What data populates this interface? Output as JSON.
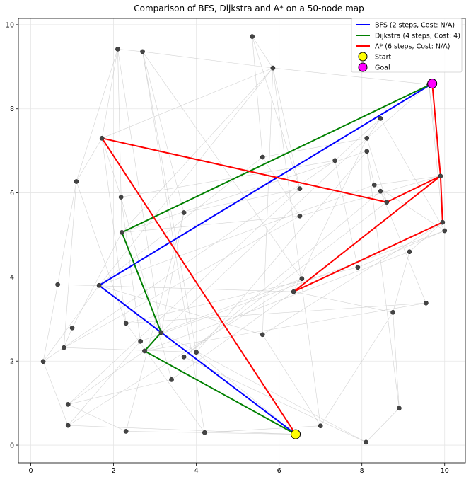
{
  "chart_data": {
    "type": "scatter",
    "title": "Comparison of BFS, Dijkstra and A* on a 50-node map",
    "xlabel": "",
    "ylabel": "",
    "xlim": [
      -0.3,
      10.5
    ],
    "ylim": [
      -0.42,
      10.15
    ],
    "xticks": [
      0,
      2,
      4,
      6,
      8,
      10
    ],
    "yticks": [
      0,
      2,
      4,
      6,
      8,
      10
    ],
    "grid": true,
    "legend_position": "top-right",
    "nodes": [
      [
        5.35,
        9.72
      ],
      [
        2.1,
        9.42
      ],
      [
        2.7,
        9.36
      ],
      [
        5.85,
        8.97
      ],
      [
        9.62,
        8.58
      ],
      [
        8.45,
        7.77
      ],
      [
        1.72,
        7.3
      ],
      [
        8.12,
        7.3
      ],
      [
        8.12,
        6.99
      ],
      [
        5.6,
        6.85
      ],
      [
        7.35,
        6.77
      ],
      [
        9.9,
        6.4
      ],
      [
        1.1,
        6.27
      ],
      [
        8.3,
        6.19
      ],
      [
        6.5,
        6.1
      ],
      [
        8.45,
        6.04
      ],
      [
        2.18,
        5.9
      ],
      [
        8.6,
        5.78
      ],
      [
        3.7,
        5.53
      ],
      [
        6.5,
        5.45
      ],
      [
        9.95,
        5.3
      ],
      [
        10.0,
        5.1
      ],
      [
        2.2,
        5.06
      ],
      [
        9.15,
        4.6
      ],
      [
        7.9,
        4.23
      ],
      [
        6.55,
        3.96
      ],
      [
        0.65,
        3.82
      ],
      [
        1.65,
        3.8
      ],
      [
        6.35,
        3.65
      ],
      [
        9.55,
        3.38
      ],
      [
        8.75,
        3.16
      ],
      [
        2.3,
        2.9
      ],
      [
        1.0,
        2.79
      ],
      [
        3.15,
        2.68
      ],
      [
        5.6,
        2.63
      ],
      [
        2.65,
        2.47
      ],
      [
        0.8,
        2.32
      ],
      [
        2.75,
        2.24
      ],
      [
        4.0,
        2.21
      ],
      [
        3.7,
        2.1
      ],
      [
        0.3,
        1.99
      ],
      [
        3.4,
        1.56
      ],
      [
        0.9,
        0.97
      ],
      [
        8.9,
        0.88
      ],
      [
        0.9,
        0.47
      ],
      [
        7.0,
        0.46
      ],
      [
        2.3,
        0.33
      ],
      [
        4.2,
        0.3
      ],
      [
        6.4,
        0.26
      ],
      [
        8.1,
        0.07
      ]
    ],
    "series": [
      {
        "name": "BFS (2 steps, Cost: N/A)",
        "color": "#0000ff",
        "points": [
          [
            6.4,
            0.26
          ],
          [
            1.65,
            3.8
          ],
          [
            9.7,
            8.6
          ]
        ]
      },
      {
        "name": "Dijkstra (4 steps, Cost: 4)",
        "color": "#008000",
        "points": [
          [
            6.4,
            0.26
          ],
          [
            2.75,
            2.24
          ],
          [
            3.15,
            2.68
          ],
          [
            2.2,
            5.06
          ],
          [
            9.7,
            8.6
          ]
        ]
      },
      {
        "name": "A* (6 steps, Cost: N/A)",
        "color": "#ff0000",
        "points": [
          [
            6.4,
            0.26
          ],
          [
            1.72,
            7.3
          ],
          [
            8.6,
            5.78
          ],
          [
            9.9,
            6.4
          ],
          [
            6.35,
            3.65
          ],
          [
            9.95,
            5.3
          ],
          [
            9.9,
            6.4
          ],
          [
            9.7,
            8.6
          ]
        ]
      }
    ],
    "markers": [
      {
        "name": "Start",
        "point": [
          6.4,
          0.26
        ],
        "color": "#ffff00"
      },
      {
        "name": "Goal",
        "point": [
          9.7,
          8.6
        ],
        "color": "#ff00ff"
      }
    ],
    "edges": [
      [
        1,
        2
      ],
      [
        1,
        12
      ],
      [
        1,
        22
      ],
      [
        1,
        33
      ],
      [
        2,
        3
      ],
      [
        2,
        18
      ],
      [
        2,
        25
      ],
      [
        2,
        38
      ],
      [
        2,
        47
      ],
      [
        0,
        3
      ],
      [
        0,
        9
      ],
      [
        3,
        4
      ],
      [
        3,
        6
      ],
      [
        3,
        14
      ],
      [
        3,
        22
      ],
      [
        3,
        27
      ],
      [
        3,
        34
      ],
      [
        3,
        45
      ],
      [
        4,
        11
      ],
      [
        4,
        7
      ],
      [
        4,
        20
      ],
      [
        5,
        10
      ],
      [
        5,
        21
      ],
      [
        6,
        12
      ],
      [
        6,
        16
      ],
      [
        6,
        31
      ],
      [
        6,
        48
      ],
      [
        7,
        9
      ],
      [
        7,
        17
      ],
      [
        7,
        28
      ],
      [
        7,
        33
      ],
      [
        8,
        13
      ],
      [
        8,
        22
      ],
      [
        8,
        38
      ],
      [
        8,
        43
      ],
      [
        9,
        19
      ],
      [
        9,
        27
      ],
      [
        10,
        24
      ],
      [
        10,
        40
      ],
      [
        11,
        13
      ],
      [
        11,
        17
      ],
      [
        12,
        26
      ],
      [
        12,
        36
      ],
      [
        13,
        27
      ],
      [
        14,
        18
      ],
      [
        14,
        42
      ],
      [
        15,
        17
      ],
      [
        15,
        29
      ],
      [
        15,
        39
      ],
      [
        16,
        35
      ],
      [
        16,
        41
      ],
      [
        18,
        33
      ],
      [
        18,
        46
      ],
      [
        19,
        22
      ],
      [
        19,
        36
      ],
      [
        20,
        23
      ],
      [
        21,
        24
      ],
      [
        22,
        32
      ],
      [
        23,
        30
      ],
      [
        24,
        31
      ],
      [
        25,
        33
      ],
      [
        25,
        44
      ],
      [
        26,
        40
      ],
      [
        27,
        34
      ],
      [
        27,
        40
      ],
      [
        28,
        30
      ],
      [
        28,
        41
      ],
      [
        29,
        31
      ],
      [
        29,
        37
      ],
      [
        30,
        43
      ],
      [
        30,
        45
      ],
      [
        31,
        47
      ],
      [
        32,
        36
      ],
      [
        33,
        49
      ],
      [
        34,
        45
      ],
      [
        35,
        44
      ],
      [
        36,
        38
      ],
      [
        37,
        42
      ],
      [
        38,
        48
      ],
      [
        39,
        49
      ],
      [
        40,
        44
      ],
      [
        41,
        42
      ],
      [
        42,
        46
      ],
      [
        43,
        49
      ],
      [
        45,
        47
      ],
      [
        46,
        48
      ],
      [
        21,
        35
      ],
      [
        23,
        37
      ],
      [
        26,
        28
      ],
      [
        10,
        16
      ],
      [
        5,
        7
      ],
      [
        17,
        39
      ],
      [
        11,
        19
      ],
      [
        20,
        34
      ],
      [
        0,
        14
      ],
      [
        1,
        6
      ],
      [
        44,
        48
      ],
      [
        12,
        31
      ],
      [
        13,
        21
      ]
    ]
  }
}
